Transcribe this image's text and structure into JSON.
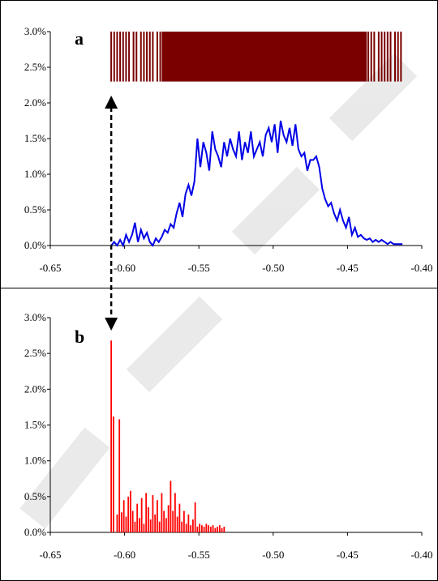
{
  "colors": {
    "rug": "#7a0000",
    "line_a": "#0000e6",
    "bars_b": "#ff0000",
    "arrow": "#000000",
    "watermark": "#d8d8d8"
  },
  "chart_data": [
    {
      "type": "line",
      "panel_label": "a",
      "xlim": [
        -0.65,
        -0.4
      ],
      "ylim": [
        0,
        3.0
      ],
      "x_ticks": [
        -0.65,
        -0.6,
        -0.55,
        -0.5,
        -0.45,
        -0.4
      ],
      "x_tick_labels": [
        "-0.65",
        "-0.60",
        "-0.55",
        "-0.50",
        "-0.45",
        "-0.40"
      ],
      "y_ticks": [
        0,
        0.5,
        1.0,
        1.5,
        2.0,
        2.5,
        3.0
      ],
      "y_tick_labels": [
        "0.0%",
        "0.5%",
        "1.0%",
        "1.5%",
        "2.0%",
        "2.5%",
        "3.0%"
      ],
      "grid": false,
      "rug": {
        "y_range": [
          2.3,
          3.0
        ],
        "x_range": [
          -0.609,
          -0.413
        ],
        "solid_range": [
          -0.575,
          -0.437
        ],
        "sparse_left": [
          -0.609,
          -0.607,
          -0.605,
          -0.603,
          -0.601,
          -0.599,
          -0.597,
          -0.594,
          -0.592,
          -0.589,
          -0.587,
          -0.585,
          -0.583,
          -0.581,
          -0.578,
          -0.576
        ],
        "sparse_right": [
          -0.436,
          -0.434,
          -0.432,
          -0.429,
          -0.427,
          -0.425,
          -0.423,
          -0.421,
          -0.418,
          -0.416,
          -0.414
        ]
      },
      "series": [
        {
          "x": [
            -0.609,
            -0.607,
            -0.605,
            -0.603,
            -0.601,
            -0.599,
            -0.597,
            -0.595,
            -0.593,
            -0.591,
            -0.589,
            -0.587,
            -0.585,
            -0.583,
            -0.581,
            -0.579,
            -0.577,
            -0.575,
            -0.573,
            -0.571,
            -0.569,
            -0.567,
            -0.565,
            -0.563,
            -0.561,
            -0.559,
            -0.557,
            -0.555,
            -0.553,
            -0.551,
            -0.549,
            -0.547,
            -0.545,
            -0.543,
            -0.541,
            -0.539,
            -0.537,
            -0.535,
            -0.533,
            -0.531,
            -0.529,
            -0.527,
            -0.525,
            -0.523,
            -0.521,
            -0.519,
            -0.517,
            -0.515,
            -0.513,
            -0.511,
            -0.509,
            -0.507,
            -0.505,
            -0.503,
            -0.501,
            -0.499,
            -0.497,
            -0.495,
            -0.493,
            -0.491,
            -0.489,
            -0.487,
            -0.485,
            -0.483,
            -0.481,
            -0.479,
            -0.477,
            -0.475,
            -0.473,
            -0.471,
            -0.469,
            -0.467,
            -0.465,
            -0.463,
            -0.461,
            -0.459,
            -0.457,
            -0.455,
            -0.453,
            -0.451,
            -0.449,
            -0.447,
            -0.445,
            -0.443,
            -0.441,
            -0.439,
            -0.437,
            -0.435,
            -0.433,
            -0.431,
            -0.429,
            -0.427,
            -0.425,
            -0.423,
            -0.421,
            -0.419,
            -0.417,
            -0.415,
            -0.413
          ],
          "y": [
            0.0,
            0.05,
            0.0,
            0.08,
            0.0,
            0.15,
            0.05,
            0.15,
            0.32,
            0.05,
            0.22,
            0.1,
            0.18,
            0.05,
            0.0,
            0.1,
            0.05,
            0.12,
            0.22,
            0.18,
            0.3,
            0.25,
            0.45,
            0.6,
            0.4,
            0.72,
            0.85,
            0.7,
            0.9,
            1.5,
            1.1,
            1.45,
            1.3,
            1.05,
            1.6,
            1.35,
            1.25,
            1.1,
            1.45,
            1.25,
            1.5,
            1.35,
            1.25,
            1.6,
            1.2,
            1.45,
            1.3,
            1.6,
            1.25,
            1.35,
            1.45,
            1.25,
            1.55,
            1.65,
            1.45,
            1.7,
            1.3,
            1.75,
            1.55,
            1.45,
            1.65,
            1.4,
            1.7,
            1.35,
            1.25,
            1.3,
            1.05,
            1.2,
            1.2,
            1.25,
            1.1,
            0.8,
            0.65,
            0.55,
            0.6,
            0.45,
            0.35,
            0.5,
            0.35,
            0.25,
            0.4,
            0.15,
            0.25,
            0.12,
            0.15,
            0.1,
            0.08,
            0.1,
            0.05,
            0.08,
            0.05,
            0.08,
            0.05,
            0.02,
            0.05,
            0.02,
            0.02,
            0.02,
            0.02
          ]
        }
      ]
    },
    {
      "type": "bar",
      "panel_label": "b",
      "xlim": [
        -0.65,
        -0.4
      ],
      "ylim": [
        0,
        3.0
      ],
      "x_ticks": [
        -0.65,
        -0.6,
        -0.55,
        -0.5,
        -0.45,
        -0.4
      ],
      "x_tick_labels": [
        "-0.65",
        "-0.60",
        "-0.55",
        "-0.50",
        "-0.45",
        "-0.40"
      ],
      "y_ticks": [
        0,
        0.5,
        1.0,
        1.5,
        2.0,
        2.5,
        3.0
      ],
      "y_tick_labels": [
        "0.0%",
        "0.5%",
        "1.0%",
        "1.5%",
        "2.0%",
        "2.5%",
        "3.0%"
      ],
      "grid": false,
      "series": [
        {
          "x": [
            -0.609,
            -0.6075,
            -0.605,
            -0.6035,
            -0.602,
            -0.6005,
            -0.599,
            -0.5975,
            -0.596,
            -0.5945,
            -0.593,
            -0.5915,
            -0.59,
            -0.5885,
            -0.587,
            -0.5855,
            -0.584,
            -0.5825,
            -0.581,
            -0.5795,
            -0.578,
            -0.5765,
            -0.575,
            -0.5735,
            -0.572,
            -0.5705,
            -0.569,
            -0.5675,
            -0.566,
            -0.5645,
            -0.563,
            -0.5615,
            -0.56,
            -0.5585,
            -0.557,
            -0.5555,
            -0.554,
            -0.5525,
            -0.551,
            -0.5495,
            -0.548,
            -0.5465,
            -0.545,
            -0.5435,
            -0.542,
            -0.5405,
            -0.539,
            -0.5375,
            -0.536,
            -0.5345,
            -0.533
          ],
          "values": [
            2.68,
            1.62,
            0.25,
            1.58,
            0.28,
            0.45,
            0.22,
            0.5,
            0.58,
            0.3,
            0.15,
            0.4,
            0.2,
            0.48,
            0.12,
            0.55,
            0.35,
            0.18,
            0.52,
            0.25,
            0.45,
            0.15,
            0.55,
            0.3,
            0.2,
            0.38,
            0.72,
            0.3,
            0.55,
            0.22,
            0.4,
            0.15,
            0.3,
            0.12,
            0.25,
            0.1,
            0.18,
            0.42,
            0.08,
            0.12,
            0.1,
            0.08,
            0.12,
            0.1,
            0.08,
            0.1,
            0.06,
            0.08,
            0.1,
            0.06,
            0.08
          ]
        }
      ]
    }
  ]
}
